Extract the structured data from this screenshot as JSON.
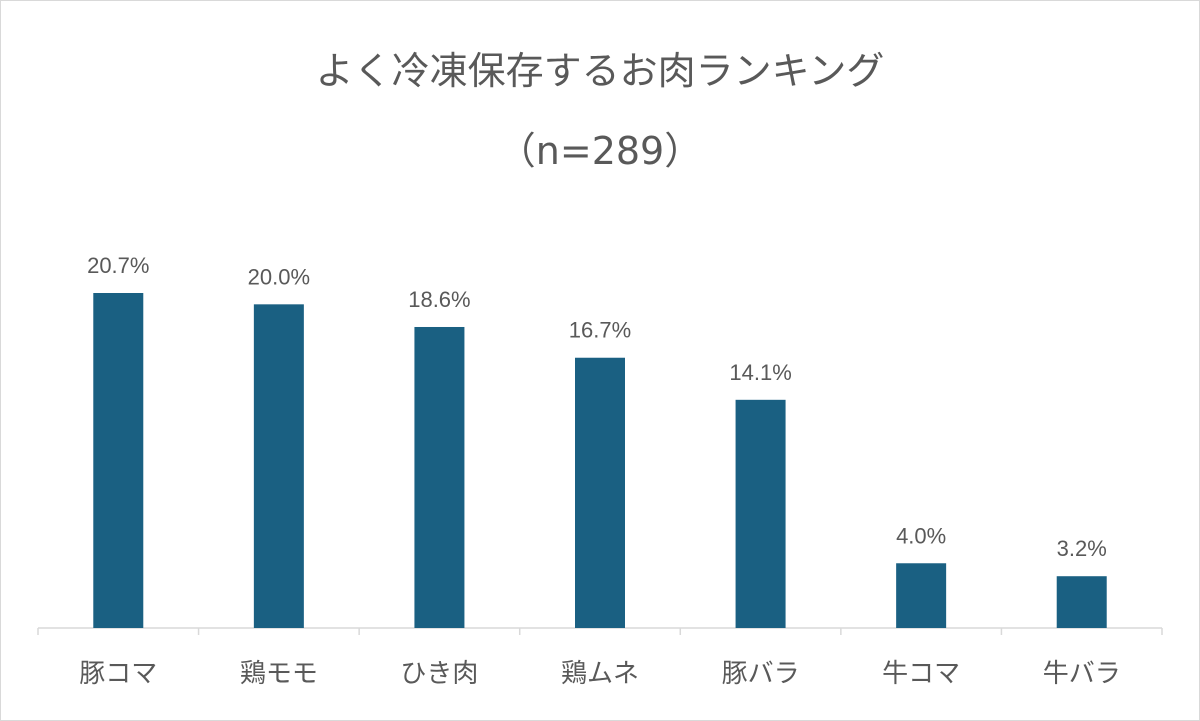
{
  "chart_data": {
    "type": "bar",
    "title": "よく冷凍保存するお肉ランキング",
    "subtitle": "（n=289）",
    "categories": [
      "豚コマ",
      "鶏モモ",
      "ひき肉",
      "鶏ムネ",
      "豚バラ",
      "牛コマ",
      "牛バラ"
    ],
    "values": [
      20.7,
      20.0,
      18.6,
      16.7,
      14.1,
      4.0,
      3.2
    ],
    "data_labels": [
      "20.7%",
      "20.0%",
      "18.6%",
      "16.7%",
      "14.1%",
      "4.0%",
      "3.2%"
    ],
    "xlabel": "",
    "ylabel": "",
    "ylim": [
      0,
      20.7
    ],
    "grid": false,
    "bar_color": "#1a6082",
    "text_color": "#595959"
  }
}
